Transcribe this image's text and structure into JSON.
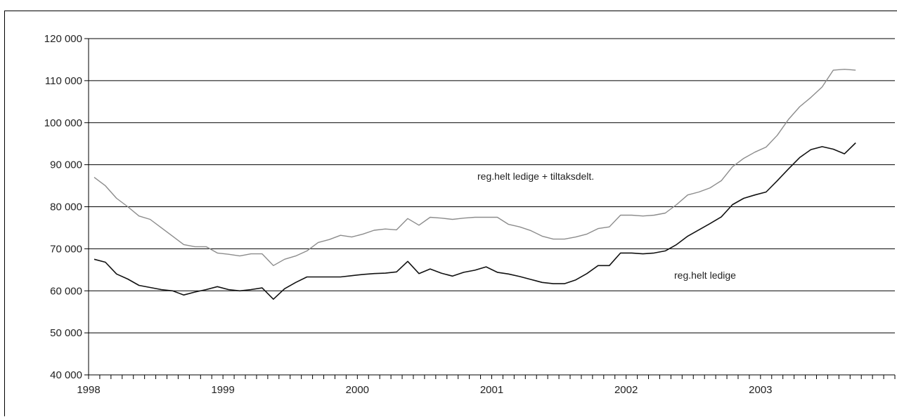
{
  "chart_data": {
    "type": "line",
    "title": "",
    "xlabel": "",
    "ylabel": "",
    "ylim": [
      40000,
      120000
    ],
    "yticks": [
      "40 000",
      "50 000",
      "60 000",
      "70 000",
      "80 000",
      "90 000",
      "100 000",
      "110 000",
      "120 000"
    ],
    "ytick_values": [
      40000,
      50000,
      60000,
      70000,
      80000,
      90000,
      100000,
      110000,
      120000
    ],
    "xticks": [
      "1998",
      "1999",
      "2000",
      "2001",
      "2002",
      "2003"
    ],
    "months_total": 72,
    "grid": true,
    "annotations": [
      {
        "text": "reg.helt ledige + tiltaksdelt.",
        "series": 0
      },
      {
        "text": "reg.helt ledige",
        "series": 1
      }
    ],
    "series": [
      {
        "color": "#8c8c8c",
        "values": [
          87000,
          85000,
          82000,
          80000,
          77800,
          77000,
          75000,
          73000,
          71000,
          70500,
          70500,
          69000,
          68700,
          68300,
          68800,
          68800,
          66000,
          67500,
          68300,
          69500,
          71500,
          72200,
          73200,
          72800,
          73500,
          74400,
          74700,
          74500,
          77200,
          75600,
          77500,
          77300,
          77000,
          77300,
          77500,
          77500,
          77500,
          75800,
          75200,
          74300,
          73000,
          72300,
          72300,
          72800,
          73500,
          74800,
          75200,
          78000,
          78000,
          77800,
          78000,
          78500,
          80500,
          82800,
          83500,
          84500,
          86200,
          89500,
          91500,
          93000,
          94200,
          97000,
          100800,
          103800,
          106000,
          108500,
          112500,
          112700,
          112500
        ]
      },
      {
        "color": "#111111",
        "values": [
          67500,
          66800,
          64000,
          62800,
          61300,
          60800,
          60300,
          60000,
          59000,
          59700,
          60300,
          61000,
          60300,
          60000,
          60300,
          60700,
          58000,
          60500,
          62000,
          63300,
          63300,
          63300,
          63300,
          63600,
          63900,
          64100,
          64200,
          64500,
          67000,
          64100,
          65200,
          64200,
          63500,
          64400,
          64900,
          65700,
          64400,
          64000,
          63400,
          62700,
          62000,
          61700,
          61700,
          62600,
          64100,
          66000,
          66000,
          69000,
          69000,
          68800,
          69000,
          69500,
          71000,
          73000,
          74500,
          76000,
          77600,
          80500,
          82000,
          82800,
          83500,
          86200,
          89000,
          91700,
          93600,
          94300,
          93700,
          92600,
          95200
        ]
      }
    ]
  }
}
